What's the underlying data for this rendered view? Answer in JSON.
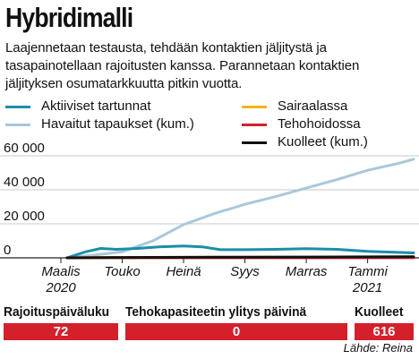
{
  "title": "Hybridimalli",
  "subtitle": "Laajennetaan testausta, tehdään kontaktien jäljitystä ja tasapainotellaan rajoitusten kanssa. Parannetaan kontaktien jäljityksen osumatarkkuutta pitkin vuotta.",
  "legend": [
    {
      "label": "Aktiiviset tartunnat",
      "color": "#1a8fa8"
    },
    {
      "label": "Havaitut tapaukset (kum.)",
      "color": "#a9c8da"
    },
    {
      "label": "Sairaalassa",
      "color": "#f2b21b"
    },
    {
      "label": "Tehohoidossa",
      "color": "#d4202a"
    },
    {
      "label": "Kuolleet (kum.)",
      "color": "#111111"
    }
  ],
  "chart_data": {
    "type": "line",
    "title": "",
    "xlabel": "",
    "ylabel": "",
    "x_ticks": [
      {
        "label": "Maalis",
        "label2": "2020",
        "month": 0
      },
      {
        "label": "Touko",
        "label2": "",
        "month": 2
      },
      {
        "label": "Heinä",
        "label2": "",
        "month": 4
      },
      {
        "label": "Syys",
        "label2": "",
        "month": 6
      },
      {
        "label": "Marras",
        "label2": "",
        "month": 8
      },
      {
        "label": "Tammi",
        "label2": "2021",
        "month": 10
      }
    ],
    "y_ticks": [
      0,
      20000,
      40000,
      60000
    ],
    "y_tick_labels": [
      "0",
      "20 000",
      "40 000",
      "60 000"
    ],
    "xlim": [
      0,
      11.5
    ],
    "ylim": [
      0,
      60000
    ],
    "grid": "horizontal",
    "series": [
      {
        "name": "Havaitut tapaukset (kum.)",
        "color": "#a9c8da",
        "points": [
          [
            0.2,
            0
          ],
          [
            1.0,
            1500
          ],
          [
            2.0,
            3500
          ],
          [
            3.0,
            10000
          ],
          [
            4.0,
            19500
          ],
          [
            5.0,
            26000
          ],
          [
            6.0,
            31500
          ],
          [
            7.0,
            36000
          ],
          [
            8.0,
            41000
          ],
          [
            9.0,
            46000
          ],
          [
            10.0,
            51500
          ],
          [
            11.0,
            55500
          ],
          [
            11.5,
            58000
          ]
        ]
      },
      {
        "name": "Aktiiviset tartunnat",
        "color": "#1a8fa8",
        "points": [
          [
            0.2,
            0
          ],
          [
            0.8,
            3500
          ],
          [
            1.3,
            5500
          ],
          [
            1.8,
            5000
          ],
          [
            2.5,
            5500
          ],
          [
            3.2,
            6500
          ],
          [
            4.0,
            7000
          ],
          [
            4.6,
            6500
          ],
          [
            5.2,
            4800
          ],
          [
            6.0,
            4800
          ],
          [
            7.0,
            5000
          ],
          [
            8.0,
            5400
          ],
          [
            9.0,
            5000
          ],
          [
            10.0,
            3800
          ],
          [
            11.0,
            3200
          ],
          [
            11.5,
            2900
          ]
        ]
      },
      {
        "name": "Sairaalassa",
        "color": "#f2b21b",
        "points": [
          [
            0.2,
            0
          ],
          [
            1.0,
            180
          ],
          [
            4.0,
            120
          ],
          [
            8.0,
            160
          ],
          [
            11.5,
            130
          ]
        ]
      },
      {
        "name": "Tehohoidossa",
        "color": "#d4202a",
        "points": [
          [
            0.2,
            0
          ],
          [
            1.0,
            60
          ],
          [
            4.0,
            30
          ],
          [
            8.0,
            50
          ],
          [
            11.5,
            40
          ]
        ]
      },
      {
        "name": "Kuolleet (kum.)",
        "color": "#111111",
        "points": [
          [
            0.2,
            0
          ],
          [
            2.0,
            200
          ],
          [
            5.0,
            350
          ],
          [
            8.0,
            450
          ],
          [
            11.5,
            616
          ]
        ]
      }
    ]
  },
  "stats": [
    {
      "label": "Rajoituspäiväluku",
      "value": "72"
    },
    {
      "label": "Tehokapasiteetin ylitys päivinä",
      "value": "0"
    },
    {
      "label": "Kuolleet",
      "value": "616"
    }
  ],
  "source": "Lähde: Reina"
}
